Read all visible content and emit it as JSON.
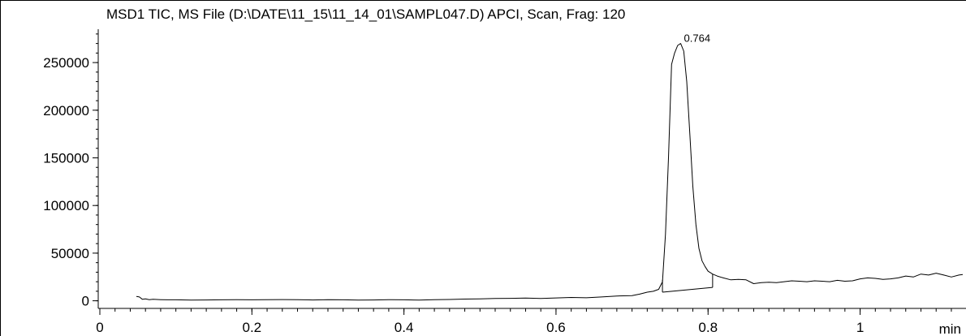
{
  "chart_data": {
    "type": "line",
    "title": "MSD1 TIC, MS File (D:\\DATE\\11_15\\11_14_01\\SAMPL047.D)  APCI, Scan, Frag: 120",
    "xlabel": "min",
    "ylabel": "",
    "xlim": [
      0,
      1.135
    ],
    "ylim": [
      -8000,
      285000
    ],
    "x_ticks": [
      0,
      0.2,
      0.4,
      0.6,
      0.8,
      1
    ],
    "x_tick_labels": [
      "0",
      "0.2",
      "0.4",
      "0.6",
      "0.8",
      "1"
    ],
    "y_ticks": [
      0,
      50000,
      100000,
      150000,
      200000,
      250000
    ],
    "y_tick_labels": [
      "0",
      "50000",
      "100000",
      "150000",
      "200000",
      "250000"
    ],
    "grid": false,
    "series": [
      {
        "x": [
          0.048,
          0.052,
          0.056,
          0.06,
          0.065,
          0.07,
          0.08,
          0.09,
          0.1,
          0.12,
          0.14,
          0.16,
          0.18,
          0.2,
          0.22,
          0.24,
          0.26,
          0.28,
          0.3,
          0.32,
          0.34,
          0.36,
          0.38,
          0.4,
          0.42,
          0.44,
          0.46,
          0.48,
          0.5,
          0.52,
          0.54,
          0.56,
          0.58,
          0.6,
          0.62,
          0.64,
          0.66,
          0.68,
          0.7,
          0.71,
          0.72,
          0.728,
          0.735,
          0.74,
          0.744,
          0.748,
          0.752,
          0.756,
          0.76,
          0.764,
          0.768,
          0.772,
          0.776,
          0.78,
          0.784,
          0.788,
          0.792,
          0.796,
          0.8,
          0.806,
          0.812,
          0.82,
          0.83,
          0.84,
          0.85,
          0.86,
          0.87,
          0.88,
          0.89,
          0.9,
          0.91,
          0.92,
          0.93,
          0.94,
          0.95,
          0.96,
          0.97,
          0.98,
          0.99,
          1.0,
          1.01,
          1.02,
          1.03,
          1.04,
          1.05,
          1.06,
          1.07,
          1.08,
          1.09,
          1.1,
          1.11,
          1.12,
          1.13,
          1.135
        ],
        "y": [
          4500,
          4000,
          1500,
          2000,
          1200,
          1500,
          1200,
          1000,
          1000,
          800,
          900,
          1000,
          1200,
          1000,
          1100,
          1300,
          1100,
          900,
          1200,
          1000,
          800,
          900,
          1100,
          1000,
          700,
          1200,
          1400,
          1800,
          2000,
          2400,
          2600,
          2800,
          2500,
          3000,
          3500,
          3200,
          4000,
          5000,
          5500,
          7000,
          9000,
          10000,
          12000,
          20000,
          70000,
          150000,
          248000,
          260000,
          268000,
          270000,
          262000,
          230000,
          175000,
          120000,
          80000,
          55000,
          42000,
          36000,
          31000,
          28000,
          26000,
          24000,
          22000,
          22500,
          22000,
          18000,
          19000,
          19500,
          19000,
          20000,
          21000,
          20500,
          20000,
          21000,
          20500,
          20000,
          21500,
          20500,
          21000,
          23000,
          24000,
          23500,
          22500,
          23000,
          24000,
          26000,
          25000,
          28000,
          27000,
          29000,
          27000,
          25000,
          27000,
          27500
        ]
      }
    ],
    "baseline": {
      "x": [
        0.74,
        0.806
      ],
      "y": [
        9000,
        14000
      ]
    },
    "annotations": [
      {
        "x": 0.764,
        "y": 270000,
        "text": "0.764"
      }
    ]
  }
}
